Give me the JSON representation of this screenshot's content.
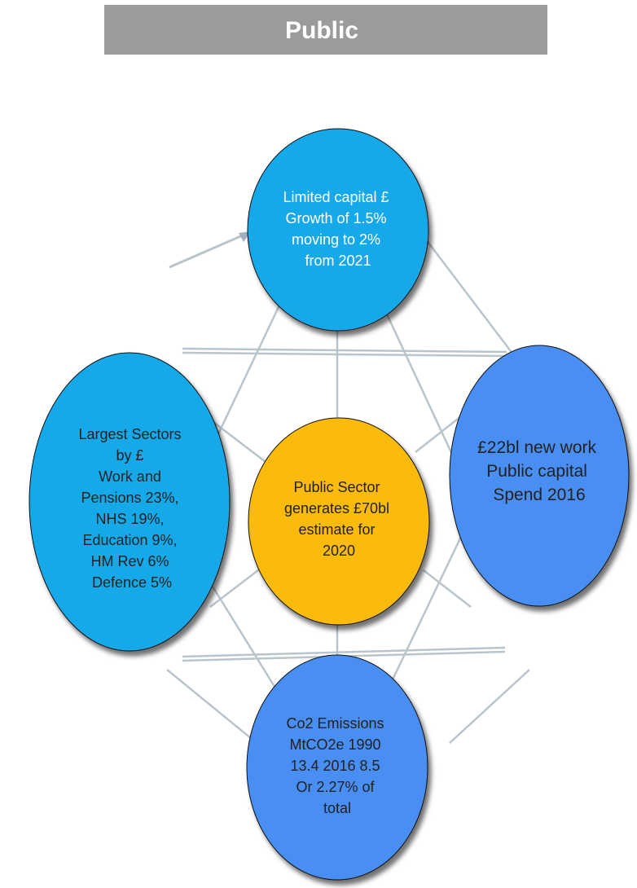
{
  "header": {
    "title": "Public"
  },
  "nodes": {
    "top": {
      "lines": [
        "Limited capital £",
        "Growth of 1.5%",
        "moving to 2%",
        "from 2021"
      ],
      "fill": "#15a9e9"
    },
    "left": {
      "lines": [
        "Largest Sectors",
        "by £",
        "Work and",
        "Pensions 23%,",
        "NHS 19%,",
        "Education 9%,",
        "HM Rev 6%",
        "Defence 5%"
      ],
      "fill": "#15a9e9"
    },
    "center": {
      "lines": [
        "Public Sector",
        "generates £70bl",
        "estimate for",
        "2020"
      ],
      "fill": "#fbbb0c"
    },
    "right": {
      "lines": [
        "£22bl new work",
        "Public capital",
        "Spend  2016"
      ],
      "fill": "#4a8ef2"
    },
    "bottom": {
      "lines": [
        "Co2 Emissions",
        "MtCO2e 1990",
        "13.4  2016 8.5",
        "Or 2.27% of",
        "total"
      ],
      "fill": "#4a8ef2"
    }
  },
  "colors": {
    "title_bar": "#9b9b9b",
    "connector": "#b9c5cc",
    "shadow": "#3a3a3a"
  }
}
